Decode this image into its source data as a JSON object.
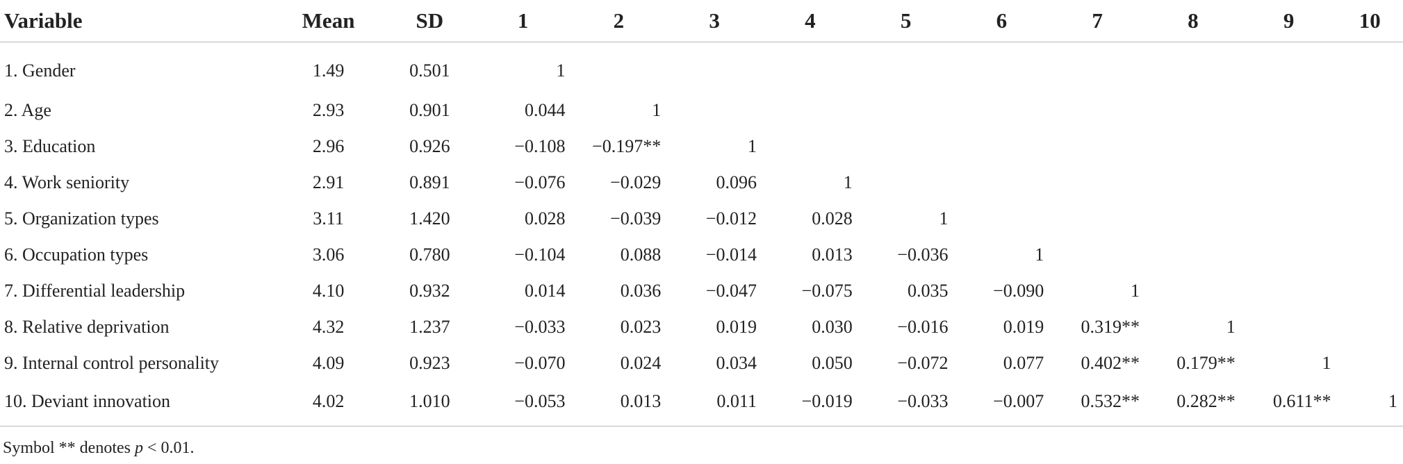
{
  "table": {
    "headers": [
      "Variable",
      "Mean",
      "SD",
      "1",
      "2",
      "3",
      "4",
      "5",
      "6",
      "7",
      "8",
      "9",
      "10"
    ],
    "rows": [
      {
        "variable": "1. Gender",
        "mean": "1.49",
        "sd": "0.501",
        "corr": [
          "1",
          "",
          "",
          "",
          "",
          "",
          "",
          "",
          "",
          ""
        ]
      },
      {
        "variable": "2. Age",
        "mean": "2.93",
        "sd": "0.901",
        "corr": [
          "0.044",
          "1",
          "",
          "",
          "",
          "",
          "",
          "",
          "",
          ""
        ]
      },
      {
        "variable": "3. Education",
        "mean": "2.96",
        "sd": "0.926",
        "corr": [
          "−0.108",
          "−0.197**",
          "1",
          "",
          "",
          "",
          "",
          "",
          "",
          ""
        ]
      },
      {
        "variable": "4. Work seniority",
        "mean": "2.91",
        "sd": "0.891",
        "corr": [
          "−0.076",
          "−0.029",
          "0.096",
          "1",
          "",
          "",
          "",
          "",
          "",
          ""
        ]
      },
      {
        "variable": "5. Organization types",
        "mean": "3.11",
        "sd": "1.420",
        "corr": [
          "0.028",
          "−0.039",
          "−0.012",
          "0.028",
          "1",
          "",
          "",
          "",
          "",
          ""
        ]
      },
      {
        "variable": "6. Occupation types",
        "mean": "3.06",
        "sd": "0.780",
        "corr": [
          "−0.104",
          "0.088",
          "−0.014",
          "0.013",
          "−0.036",
          "1",
          "",
          "",
          "",
          ""
        ]
      },
      {
        "variable": "7. Differential leadership",
        "mean": "4.10",
        "sd": "0.932",
        "corr": [
          "0.014",
          "0.036",
          "−0.047",
          "−0.075",
          "0.035",
          "−0.090",
          "1",
          "",
          "",
          ""
        ]
      },
      {
        "variable": "8. Relative deprivation",
        "mean": "4.32",
        "sd": "1.237",
        "corr": [
          "−0.033",
          "0.023",
          "0.019",
          "0.030",
          "−0.016",
          "0.019",
          "0.319**",
          "1",
          "",
          ""
        ]
      },
      {
        "variable": "9. Internal control personality",
        "mean": "4.09",
        "sd": "0.923",
        "corr": [
          "−0.070",
          "0.024",
          "0.034",
          "0.050",
          "−0.072",
          "0.077",
          "0.402**",
          "0.179**",
          "1",
          ""
        ]
      },
      {
        "variable": "10. Deviant innovation",
        "mean": "4.02",
        "sd": "1.010",
        "corr": [
          "−0.053",
          "0.013",
          "0.011",
          "−0.019",
          "−0.033",
          "−0.007",
          "0.532**",
          "0.282**",
          "0.611**",
          "1"
        ]
      }
    ]
  },
  "footnote": {
    "prefix": "Symbol ** denotes ",
    "p": "p",
    "suffix": " < 0.01."
  }
}
